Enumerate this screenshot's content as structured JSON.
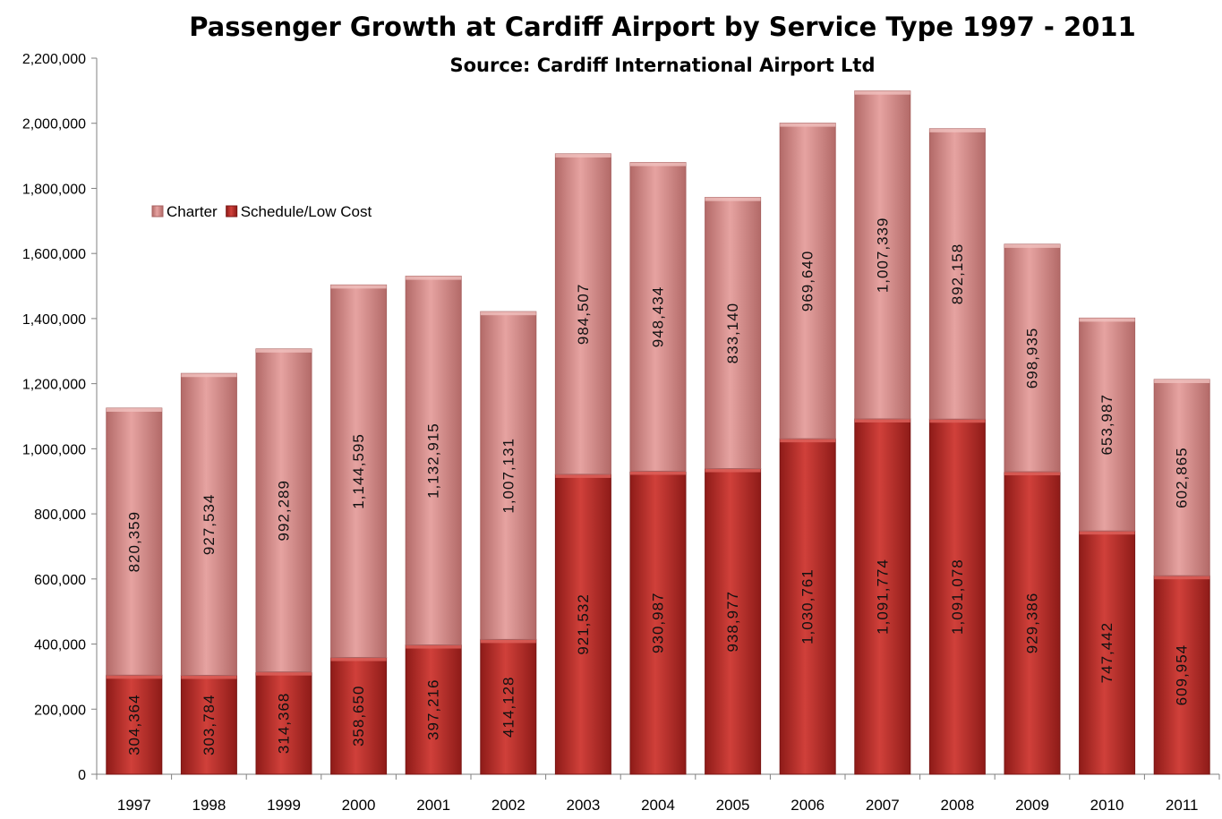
{
  "chart_data": {
    "type": "bar",
    "stacked": true,
    "title": "Passenger Growth at Cardiff Airport by Service Type 1997 - 2011",
    "subtitle": "Source: Cardiff International Airport Ltd",
    "categories": [
      "1997",
      "1998",
      "1999",
      "2000",
      "2001",
      "2002",
      "2003",
      "2004",
      "2005",
      "2006",
      "2007",
      "2008",
      "2009",
      "2010",
      "2011"
    ],
    "series": [
      {
        "name": "Schedule/Low Cost",
        "color": "#c0302c",
        "values": [
          304364,
          303784,
          314368,
          358650,
          397216,
          414128,
          921532,
          930987,
          938977,
          1030761,
          1091774,
          1091078,
          929386,
          747442,
          609954
        ],
        "labels": [
          "304,364",
          "303,784",
          "314,368",
          "358,650",
          "397,216",
          "414,128",
          "921,532",
          "930,987",
          "938,977",
          "1,030,761",
          "1,091,774",
          "1,091,078",
          "929,386",
          "747,442",
          "609,954"
        ]
      },
      {
        "name": "Charter",
        "color": "#d98a88",
        "values": [
          820359,
          927534,
          992289,
          1144595,
          1132915,
          1007131,
          984507,
          948434,
          833140,
          969640,
          1007339,
          892158,
          698935,
          653987,
          602865
        ],
        "labels": [
          "820,359",
          "927,534",
          "992,289",
          "1,144,595",
          "1,132,915",
          "1,007,131",
          "984,507",
          "948,434",
          "833,140",
          "969,640",
          "1,007,339",
          "892,158",
          "698,935",
          "653,987",
          "602,865"
        ]
      }
    ],
    "ylim": [
      0,
      2200000
    ],
    "yticks": [
      0,
      200000,
      400000,
      600000,
      800000,
      1000000,
      1200000,
      1400000,
      1600000,
      1800000,
      2000000,
      2200000
    ],
    "ytick_labels": [
      "0",
      "200,000",
      "400,000",
      "600,000",
      "800,000",
      "1,000,000",
      "1,200,000",
      "1,400,000",
      "1,600,000",
      "1,800,000",
      "2,000,000",
      "2,200,000"
    ],
    "legend": {
      "placement": "upper-left",
      "entries": [
        "Charter",
        "Schedule/Low Cost"
      ]
    },
    "grid": false
  }
}
